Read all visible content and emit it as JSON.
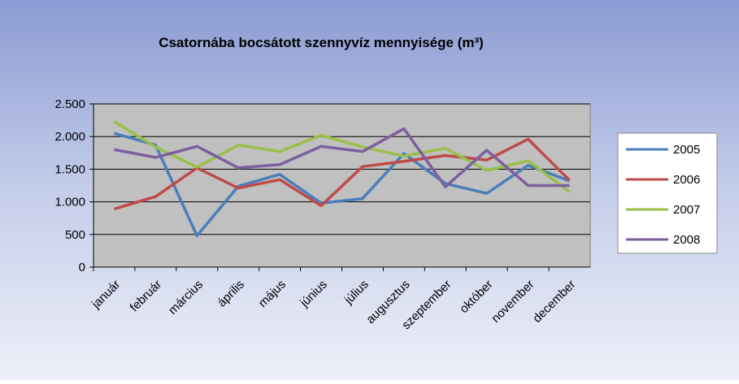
{
  "chart_data": {
    "type": "line",
    "title": "Csatornába bocsátott szennyvíz mennyisége (m³)",
    "categories": [
      "január",
      "február",
      "március",
      "április",
      "május",
      "június",
      "július",
      "augusztus",
      "szeptember",
      "október",
      "november",
      "december"
    ],
    "series": [
      {
        "name": "2005",
        "color": "#4a7ebb",
        "values": [
          2050,
          1870,
          480,
          1240,
          1420,
          980,
          1050,
          1740,
          1280,
          1130,
          1560,
          1320
        ]
      },
      {
        "name": "2006",
        "color": "#be4b48",
        "values": [
          890,
          1080,
          1520,
          1210,
          1340,
          940,
          1540,
          1620,
          1710,
          1640,
          1960,
          1330
        ]
      },
      {
        "name": "2007",
        "color": "#98c047",
        "values": [
          2230,
          1840,
          1530,
          1870,
          1770,
          2020,
          1840,
          1700,
          1820,
          1480,
          1630,
          1150
        ]
      },
      {
        "name": "2008",
        "color": "#7d5fa0",
        "values": [
          1800,
          1680,
          1850,
          1520,
          1570,
          1850,
          1770,
          2120,
          1230,
          1790,
          1250,
          1250
        ]
      }
    ],
    "ylim": [
      0,
      2500
    ],
    "yticks": [
      0,
      500,
      {
        "value": 1000,
        "label": "1.000"
      },
      {
        "value": 1500,
        "label": "1.500"
      },
      {
        "value": 2000,
        "label": "2.000"
      },
      {
        "value": 2500,
        "label": "2.500"
      }
    ],
    "grid": true,
    "legend": "right"
  }
}
